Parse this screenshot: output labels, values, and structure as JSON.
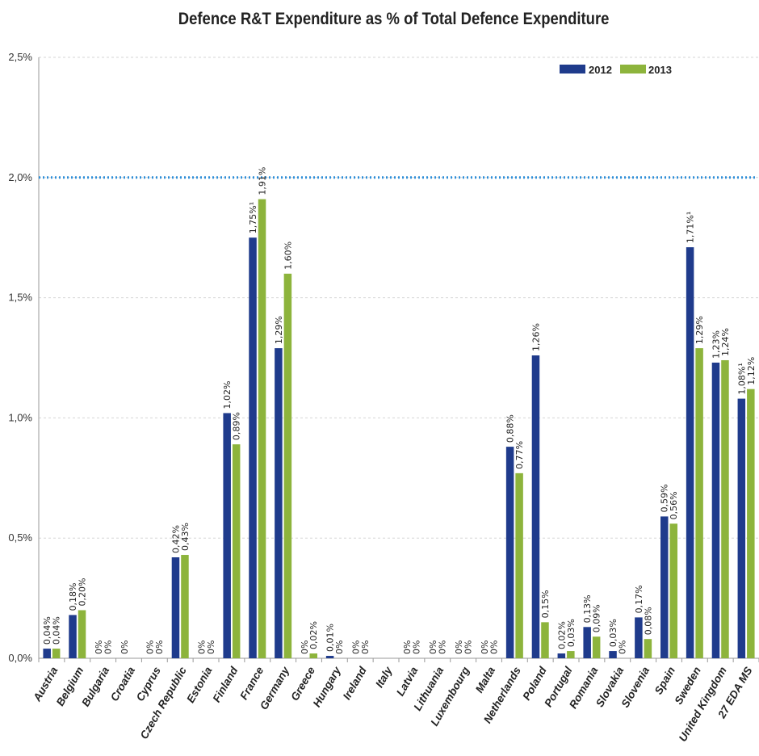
{
  "chart_data": {
    "type": "bar",
    "title": "Defence R&T Expenditure as % of Total Defence Expenditure",
    "xlabel": "",
    "ylabel": "",
    "ylim": [
      0,
      2.5
    ],
    "yticks": [
      "0,0%",
      "0,5%",
      "1,0%",
      "1,5%",
      "2,0%",
      "2,5%"
    ],
    "reference_line": 2.0,
    "grid": true,
    "legend_position": "top-right",
    "colors": {
      "2012": "#1f3b8c",
      "2013": "#8db43c",
      "reference": "#2f8fd8"
    },
    "categories": [
      "Austria",
      "Belgium",
      "Bulgaria",
      "Croatia",
      "Cyprus",
      "Czech Republic",
      "Estonia",
      "Finland",
      "France",
      "Germany",
      "Greece",
      "Hungary",
      "Ireland",
      "Italy",
      "Latvia",
      "Lithuania",
      "Luxembourg",
      "Malta",
      "Netherlands",
      "Poland",
      "Portugal",
      "Romania",
      "Slovakia",
      "Slovenia",
      "Spain",
      "Sweden",
      "United Kingdom",
      "27 EDA MS"
    ],
    "series": [
      {
        "name": "2012",
        "values": [
          0.04,
          0.18,
          0,
          0,
          0,
          0.42,
          0,
          1.02,
          1.75,
          1.29,
          0,
          0.01,
          0,
          null,
          0,
          0,
          0,
          0,
          0.88,
          1.26,
          0.02,
          0.13,
          0.03,
          0.17,
          0.59,
          1.71,
          1.23,
          1.08
        ],
        "labels": [
          "0,04%",
          "0,18%",
          "0%",
          "0%",
          "0%",
          "0,42%",
          "0%",
          "1,02%",
          "1,75%¹",
          "1,29%",
          "0%",
          "0,01%",
          "0%",
          "",
          "0%",
          "0%",
          "0%",
          "0%",
          "0,88%",
          "1,26%",
          "0,02%",
          "0,13%",
          "0,03%",
          "0,17%",
          "0,59%",
          "1,71%¹",
          "1,23%",
          "1,08%¹"
        ]
      },
      {
        "name": "2013",
        "values": [
          0.04,
          0.2,
          0,
          null,
          0,
          0.43,
          0,
          0.89,
          1.91,
          1.6,
          0.02,
          0,
          0,
          null,
          0,
          0,
          0,
          0,
          0.77,
          0.15,
          0.03,
          0.09,
          0,
          0.08,
          0.56,
          1.29,
          1.24,
          1.12
        ],
        "labels": [
          "0,04%",
          "0,20%",
          "0%",
          "",
          "0%",
          "0,43%",
          "0%",
          "0,89%",
          "1,91%",
          "1,60%",
          "0,02%",
          "0%",
          "0%",
          "",
          "0%",
          "0%",
          "0%",
          "0%",
          "0,77%",
          "0,15%",
          "0,03%",
          "0,09%",
          "0%",
          "0,08%",
          "0,56%",
          "1,29%",
          "1,24%",
          "1,12%"
        ]
      }
    ]
  }
}
